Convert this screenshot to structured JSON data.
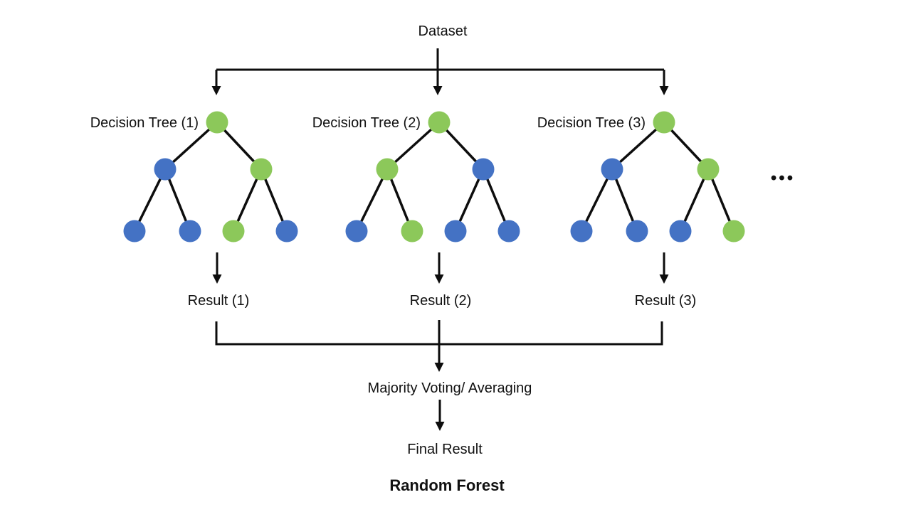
{
  "diagram_title": "Random Forest",
  "dataset_label": "Dataset",
  "majority_label": "Majority Voting/ Averaging",
  "final_label": "Final Result",
  "ellipsis": "•••",
  "colors": {
    "green": "#8CC85A",
    "blue": "#4472C4",
    "line": "#0d0d0d",
    "text": "#111111"
  },
  "trees": [
    {
      "label": "Decision Tree (1)",
      "result": "Result (1)",
      "nodes": [
        "green",
        "blue",
        "green",
        "blue",
        "blue",
        "green",
        "blue"
      ]
    },
    {
      "label": "Decision Tree (2)",
      "result": "Result (2)",
      "nodes": [
        "green",
        "green",
        "blue",
        "blue",
        "green",
        "blue",
        "blue"
      ]
    },
    {
      "label": "Decision Tree (3)",
      "result": "Result (3)",
      "nodes": [
        "green",
        "blue",
        "green",
        "blue",
        "blue",
        "blue",
        "green"
      ]
    }
  ]
}
